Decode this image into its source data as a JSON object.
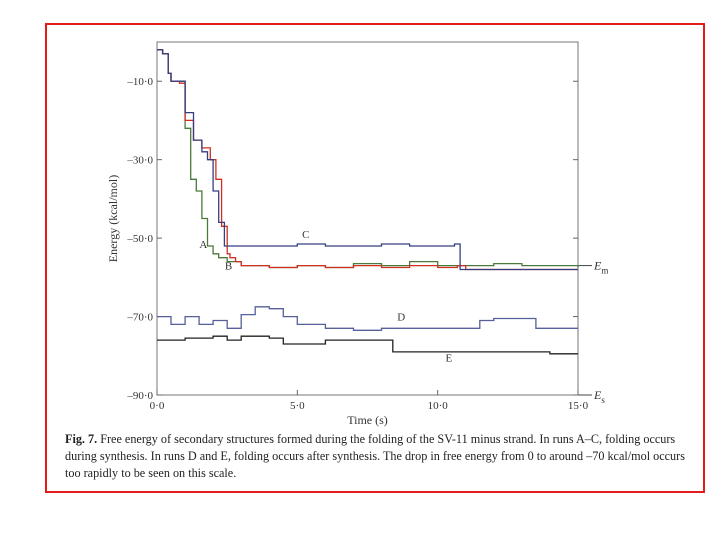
{
  "chart_data": {
    "type": "line",
    "xlabel": "Time (s)",
    "ylabel": "Energy (kcal/mol)",
    "xlim": [
      0,
      15
    ],
    "ylim": [
      -90,
      0
    ],
    "x_ticks": [
      0,
      5,
      10,
      15
    ],
    "x_tick_labels": [
      "0·0",
      "5·0",
      "10·0",
      "15·0"
    ],
    "y_ticks": [
      -10,
      -30,
      -50,
      -70,
      -90
    ],
    "y_tick_labels": [
      "–10·0",
      "–30·0",
      "–50·0",
      "–70·0",
      "–90·0"
    ],
    "grid": false,
    "legend": "none",
    "reference_lines": [
      {
        "label": "E",
        "subscript": "m",
        "y": -57
      },
      {
        "label": "E",
        "subscript": "s",
        "y": -90
      }
    ],
    "annotations": [
      {
        "text": "A",
        "x": 1.65,
        "y": -52.5
      },
      {
        "text": "B",
        "x": 2.55,
        "y": -58
      },
      {
        "text": "C",
        "x": 5.3,
        "y": -50
      },
      {
        "text": "D",
        "x": 8.7,
        "y": -71
      },
      {
        "text": "E",
        "x": 10.4,
        "y": -81.5
      }
    ],
    "series": [
      {
        "color": "#4a7a3a",
        "x": [
          0,
          0.2,
          0.4,
          0.5,
          0.8,
          1.0,
          1.2,
          1.4,
          1.6,
          1.8,
          2.0,
          2.2,
          2.5,
          3.0,
          4.0,
          5.0,
          6.0,
          7.0,
          8.0,
          9.0,
          10.0,
          11.0,
          12.0,
          13.0,
          14.0,
          15.0
        ],
        "y": [
          -2,
          -3,
          -8,
          -10,
          -10,
          -22,
          -35,
          -38,
          -45,
          -52,
          -54,
          -55,
          -56,
          -57,
          -57.5,
          -57,
          -57.5,
          -56.5,
          -57,
          -56,
          -57,
          -57,
          -56.5,
          -57,
          -57,
          -57.5
        ]
      },
      {
        "color": "#d03020",
        "x": [
          0,
          0.2,
          0.4,
          0.5,
          0.8,
          1.0,
          1.3,
          1.6,
          1.9,
          2.1,
          2.3,
          2.5,
          2.6,
          2.8,
          3.0,
          4.0,
          5.0,
          6.0,
          7.0,
          8.0,
          9.0,
          10.0,
          10.7,
          11.0,
          12.0,
          13.0,
          14.0,
          15.0
        ],
        "y": [
          -2,
          -3,
          -8,
          -10,
          -10.5,
          -20,
          -25,
          -27,
          -30,
          -35,
          -47,
          -54,
          -55,
          -56,
          -57,
          -57.5,
          -57,
          -57.5,
          -57,
          -57.5,
          -57,
          -57.5,
          -57,
          -58,
          -58,
          -58,
          -58,
          -58
        ]
      },
      {
        "color": "#353f80",
        "x": [
          0,
          0.2,
          0.4,
          0.5,
          0.8,
          1.0,
          1.3,
          1.6,
          1.8,
          2.0,
          2.2,
          2.4,
          2.6,
          3.0,
          4.0,
          5.0,
          6.0,
          7.0,
          8.0,
          9.0,
          10.0,
          10.6,
          10.8,
          12.0,
          13.0,
          14.0,
          15.0
        ],
        "y": [
          -2,
          -3,
          -8,
          -10,
          -10,
          -18,
          -25,
          -28,
          -30,
          -38,
          -46,
          -52,
          -52,
          -52,
          -52,
          -51.5,
          -52,
          -52,
          -51.5,
          -52,
          -52,
          -51.5,
          -58,
          -58,
          -58,
          -58,
          -58
        ]
      },
      {
        "color": "#555f99",
        "x": [
          0,
          0.5,
          1.0,
          1.5,
          2.0,
          2.5,
          3.0,
          3.5,
          4.0,
          4.5,
          5.0,
          6.0,
          7.0,
          8.0,
          9.0,
          10.0,
          11.0,
          11.5,
          12.0,
          13.0,
          13.5,
          14.0,
          15.0
        ],
        "y": [
          -70,
          -72,
          -70,
          -72,
          -71,
          -73,
          -69.5,
          -67.5,
          -68,
          -70,
          -72,
          -73,
          -73.5,
          -73,
          -73,
          -73,
          -73,
          -71,
          -70.5,
          -70.5,
          -73,
          -73,
          -73
        ]
      },
      {
        "color": "#222222",
        "x": [
          0,
          1.0,
          2.0,
          2.5,
          3.0,
          4.0,
          4.5,
          5.0,
          6.0,
          7.0,
          8.0,
          8.3,
          8.4,
          10.0,
          12.0,
          14.0,
          15.0
        ],
        "y": [
          -76,
          -75.5,
          -75,
          -76,
          -75,
          -75.5,
          -77,
          -77,
          -76,
          -76,
          -76,
          -76,
          -79,
          -79,
          -79,
          -79.5,
          -79.5
        ]
      }
    ]
  },
  "caption": {
    "label": "Fig. 7.",
    "text": "Free energy of secondary structures formed during the folding of the SV-11 minus strand. In runs A–C, folding occurs during synthesis. In runs D and E, folding occurs after synthesis. The drop in free energy from 0 to around –70 kcal/mol occurs too rapidly to be seen on this scale."
  }
}
